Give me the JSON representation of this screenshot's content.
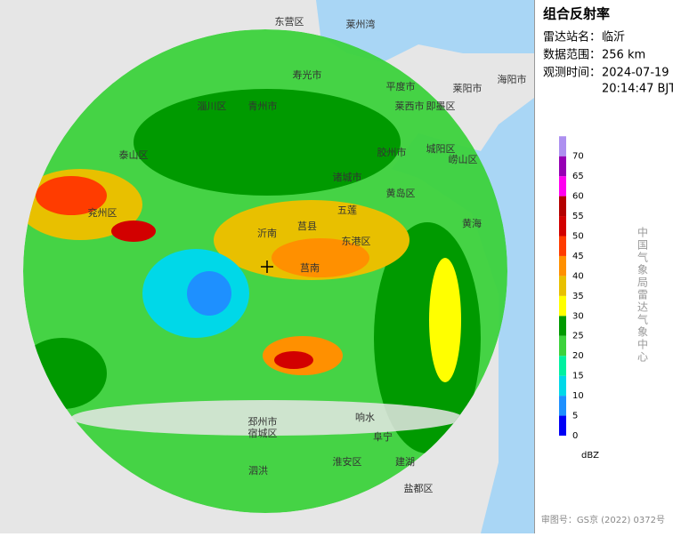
{
  "title": "组合反射率",
  "info": {
    "station_label": "雷达站名：",
    "station": "临沂",
    "range_label": "数据范围：",
    "range": "256 km",
    "time_label": "观测时间：",
    "date": "2024-07-19",
    "time": "20:14:47 BJT"
  },
  "legend": {
    "ticks": [
      0,
      5,
      10,
      15,
      20,
      25,
      30,
      35,
      40,
      45,
      50,
      55,
      60,
      65,
      70
    ],
    "colors": [
      "#0000f6",
      "#1e90ff",
      "#00d8e8",
      "#00f0a0",
      "#3cd23c",
      "#009a00",
      "#ffff00",
      "#e8c000",
      "#ff9000",
      "#ff3c00",
      "#d20000",
      "#b40000",
      "#ff00f0",
      "#9600b4",
      "#ad90f0"
    ],
    "unit": "dBZ"
  },
  "credit": "中国气象局雷达气象中心",
  "approval": "审图号：GS京 (2022) 0372号",
  "places": [
    "莱州湾",
    "东营区",
    "寿光市",
    "青州市",
    "淄川区",
    "平度市",
    "莱西市",
    "即墨区",
    "莱阳市",
    "海阳市",
    "城阳区",
    "崂山区",
    "胶州市",
    "黄岛区",
    "诸城市",
    "五莲",
    "莒县",
    "沂南",
    "莒南",
    "东港区",
    "泰山区",
    "兖州区",
    "邳州市",
    "宿城区",
    "响水",
    "阜宁",
    "建湖",
    "淮安区",
    "盐都区",
    "泗洪",
    "黄海"
  ]
}
